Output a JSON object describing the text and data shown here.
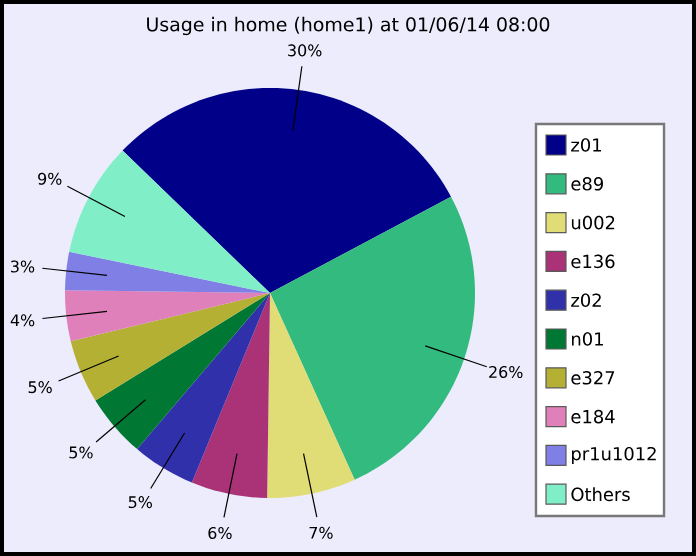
{
  "chart_data": {
    "type": "pie",
    "title": "Usage in home (home1) at 01/06/14 08:00",
    "categories": [
      "z01",
      "e89",
      "u002",
      "e136",
      "z02",
      "n01",
      "e327",
      "e184",
      "pr1u1012",
      "Others"
    ],
    "values": [
      30,
      26,
      7,
      6,
      5,
      5,
      5,
      4,
      3,
      9
    ],
    "value_labels": [
      "30%",
      "26%",
      "7%",
      "6%",
      "5%",
      "5%",
      "5%",
      "4%",
      "3%",
      "9%"
    ],
    "colors": [
      "#000088",
      "#33bb7f",
      "#e0dd77",
      "#aa3377",
      "#3030aa",
      "#007733",
      "#b3b033",
      "#e080bb",
      "#7f7fe6",
      "#80eec6"
    ],
    "legend": "right"
  }
}
